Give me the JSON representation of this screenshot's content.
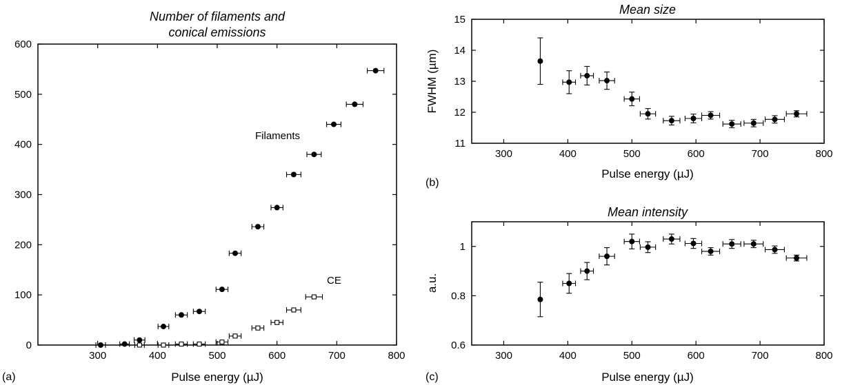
{
  "chart_data": [
    {
      "type": "scatter",
      "panel_label": "(a)",
      "title_lines": [
        "Number of filaments and",
        "conical emissions"
      ],
      "xlabel": "Pulse energy (µJ)",
      "ylabel": "",
      "xlim": [
        200,
        800
      ],
      "ylim": [
        0,
        600
      ],
      "xticks": [
        300,
        400,
        500,
        600,
        700,
        800
      ],
      "yticks": [
        0,
        100,
        200,
        300,
        400,
        500,
        600
      ],
      "series": [
        {
          "name": "Filaments",
          "marker": "filled-circle",
          "x": [
            305,
            345,
            370,
            410,
            440,
            470,
            508,
            530,
            568,
            600,
            628,
            662,
            695,
            730,
            765
          ],
          "y": [
            0,
            2,
            10,
            37,
            60,
            67,
            111,
            183,
            236,
            274,
            340,
            380,
            440,
            480,
            547
          ],
          "xerr": [
            8,
            8,
            9,
            9,
            10,
            10,
            10,
            10,
            10,
            10,
            12,
            12,
            12,
            14,
            14
          ]
        },
        {
          "name": "CE",
          "marker": "open-square",
          "x": [
            370,
            410,
            440,
            470,
            508,
            530,
            568,
            600,
            628,
            662
          ],
          "y": [
            0,
            0,
            2,
            2,
            6,
            18,
            34,
            45,
            70,
            96
          ],
          "xerr": [
            8,
            9,
            10,
            10,
            10,
            10,
            10,
            10,
            12,
            14
          ]
        }
      ]
    },
    {
      "type": "scatter",
      "panel_label": "(b)",
      "title": "Mean size",
      "xlabel": "Pulse energy (µJ)",
      "ylabel": "FWHM (µm)",
      "xlim": [
        250,
        800
      ],
      "ylim": [
        11,
        15
      ],
      "xticks": [
        300,
        400,
        500,
        600,
        700,
        800
      ],
      "yticks": [
        11,
        12,
        13,
        14,
        15
      ],
      "series": [
        {
          "marker": "filled-circle",
          "x": [
            357,
            402,
            430,
            461,
            500,
            525,
            562,
            596,
            623,
            656,
            690,
            723,
            757
          ],
          "y": [
            13.65,
            12.97,
            13.18,
            13.02,
            12.43,
            11.95,
            11.73,
            11.8,
            11.9,
            11.62,
            11.65,
            11.77,
            11.95
          ],
          "yerr": [
            0.75,
            0.37,
            0.3,
            0.28,
            0.22,
            0.17,
            0.14,
            0.14,
            0.12,
            0.12,
            0.12,
            0.12,
            0.1
          ],
          "xerr": [
            0,
            10,
            10,
            12,
            12,
            12,
            13,
            13,
            14,
            14,
            15,
            15,
            16
          ]
        }
      ]
    },
    {
      "type": "scatter",
      "panel_label": "(c)",
      "title": "Mean intensity",
      "xlabel": "Pulse energy (µJ)",
      "ylabel": "a.u.",
      "xlim": [
        250,
        800
      ],
      "ylim": [
        0.6,
        1.1
      ],
      "xticks": [
        300,
        400,
        500,
        600,
        700,
        800
      ],
      "yticks": [
        0.6,
        0.8,
        1
      ],
      "ytick_labels": [
        "0.6",
        "0.8",
        "1"
      ],
      "series": [
        {
          "marker": "filled-circle",
          "x": [
            357,
            402,
            430,
            461,
            500,
            525,
            562,
            596,
            623,
            656,
            690,
            723,
            757
          ],
          "y": [
            0.785,
            0.85,
            0.9,
            0.96,
            1.02,
            0.997,
            1.03,
            1.012,
            0.98,
            1.01,
            1.01,
            0.987,
            0.953
          ],
          "yerr": [
            0.07,
            0.04,
            0.035,
            0.035,
            0.03,
            0.022,
            0.02,
            0.02,
            0.015,
            0.018,
            0.015,
            0.015,
            0.012
          ],
          "xerr": [
            0,
            10,
            10,
            12,
            12,
            12,
            13,
            13,
            14,
            14,
            15,
            15,
            16
          ]
        }
      ]
    }
  ],
  "annotations": {
    "filaments_label": "Filaments",
    "ce_label": "CE"
  }
}
